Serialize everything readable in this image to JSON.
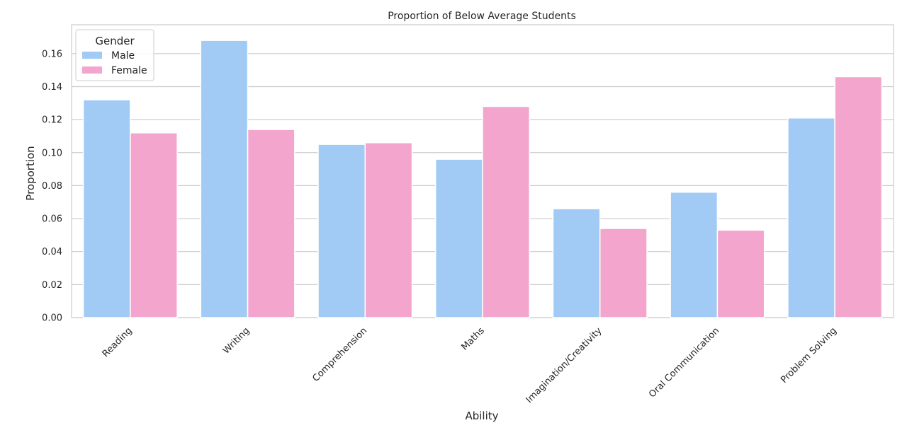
{
  "chart_data": {
    "type": "bar",
    "title": "Proportion of Below Average Students",
    "xlabel": "Ability",
    "ylabel": "Proportion",
    "categories": [
      "Reading",
      "Writing",
      "Comprehension",
      "Maths",
      "Imagination/Creativity",
      "Oral Communication",
      "Problem Solving"
    ],
    "series": [
      {
        "name": "Male",
        "color": "#a1cbf5",
        "values": [
          0.132,
          0.168,
          0.105,
          0.096,
          0.066,
          0.076,
          0.121
        ]
      },
      {
        "name": "Female",
        "color": "#f3a5cd",
        "values": [
          0.112,
          0.114,
          0.106,
          0.128,
          0.054,
          0.053,
          0.146
        ]
      }
    ],
    "ylim": [
      0,
      0.1775
    ],
    "yticks": [
      0.0,
      0.02,
      0.04,
      0.06,
      0.08,
      0.1,
      0.12,
      0.14,
      0.16
    ],
    "ytick_labels": [
      "0.00",
      "0.02",
      "0.04",
      "0.06",
      "0.08",
      "0.10",
      "0.12",
      "0.14",
      "0.16"
    ],
    "grid": true,
    "legend": {
      "title": "Gender",
      "position": "top-left"
    }
  }
}
